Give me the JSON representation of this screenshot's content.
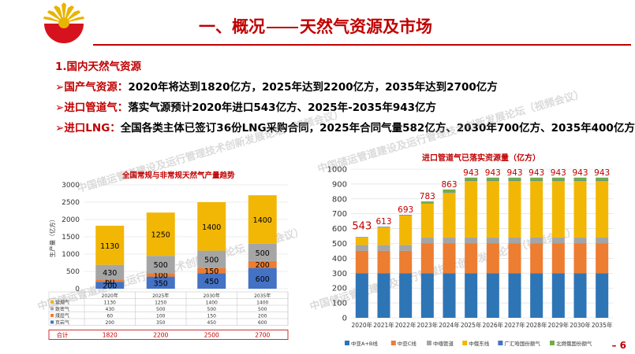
{
  "header": {
    "title_left": "一、概况",
    "title_right": "天然气资源及市场"
  },
  "section_heading": "1.国内天然气资源",
  "bullets": [
    {
      "label": "国产气资源：",
      "text": "2020年将达到1820亿方，2025年达到2200亿方，2035年达到2700亿方"
    },
    {
      "label": "进口管道气：",
      "text": "落实气源预计2020年进口543亿方、2025年-2035年943亿方"
    },
    {
      "label": "进口LNG：",
      "text": "全国各类主体已签订36份LNG采购合同，2025年合同气量582亿方、2030年700亿方、2035年400亿方"
    }
  ],
  "watermark": "中国储运管道建设及运行管理技术创新发展论坛（视频会议）",
  "page_number": "6",
  "colors": {
    "accent": "#c00000",
    "gold": "#f2b705"
  },
  "chart_data": [
    {
      "type": "bar",
      "stacked": true,
      "title": "全国常规与非常规天然气产量趋势",
      "ylabel": "生产量（亿方）",
      "ylim": [
        0,
        3000
      ],
      "yticks": [
        0,
        500,
        1000,
        1500,
        2000,
        2500,
        3000
      ],
      "categories": [
        "2020年",
        "2025年",
        "2030年",
        "2035年"
      ],
      "series": [
        {
          "name": "页岩气",
          "color": "#4472c4",
          "values": [
            200,
            350,
            450,
            600
          ]
        },
        {
          "name": "煤层气",
          "color": "#ed7d31",
          "values": [
            60,
            100,
            150,
            200
          ]
        },
        {
          "name": "致密气",
          "color": "#a5a5a5",
          "values": [
            430,
            500,
            500,
            500
          ]
        },
        {
          "name": "常规气",
          "color": "#f2b705",
          "values": [
            1130,
            1250,
            1400,
            1400
          ]
        }
      ],
      "table": {
        "legend_order": [
          "常规气",
          "致密气",
          "煤层气",
          "页岩气"
        ],
        "total_label": "合计",
        "totals": [
          1820,
          2200,
          2500,
          2700
        ]
      }
    },
    {
      "type": "bar",
      "stacked": true,
      "title": "进口管道气已落实资源量（亿方）",
      "ylim": [
        0,
        1000
      ],
      "yticks": [
        0,
        100,
        200,
        300,
        400,
        500,
        600,
        700,
        800,
        900,
        1000
      ],
      "categories": [
        "2020年",
        "2021年",
        "2022年",
        "2023年",
        "2024年",
        "2025年",
        "2026年",
        "2027年",
        "2028年",
        "2029年",
        "2030年",
        "2035年"
      ],
      "series": [
        {
          "name": "中亚A+B线",
          "color": "#2e75b6",
          "values": [
            300,
            300,
            300,
            300,
            300,
            300,
            300,
            300,
            300,
            300,
            300,
            300
          ]
        },
        {
          "name": "中亚C线",
          "color": "#ed7d31",
          "values": [
            150,
            150,
            150,
            200,
            200,
            200,
            200,
            200,
            200,
            200,
            200,
            200
          ]
        },
        {
          "name": "中缅管道",
          "color": "#a5a5a5",
          "values": [
            40,
            40,
            40,
            40,
            40,
            40,
            40,
            40,
            40,
            40,
            40,
            40
          ]
        },
        {
          "name": "中俄东线",
          "color": "#f2b705",
          "values": [
            50,
            120,
            200,
            230,
            300,
            380,
            380,
            380,
            380,
            380,
            380,
            380
          ]
        },
        {
          "name": "广汇哈国份额气",
          "color": "#4472c4",
          "values": [
            3,
            3,
            3,
            3,
            3,
            3,
            3,
            3,
            3,
            3,
            3,
            3
          ]
        },
        {
          "name": "北燃俄国份额气",
          "color": "#70ad47",
          "values": [
            0,
            0,
            0,
            10,
            20,
            20,
            20,
            20,
            20,
            20,
            20,
            20
          ]
        }
      ],
      "totals": [
        543,
        613,
        693,
        783,
        863,
        943,
        943,
        943,
        943,
        943,
        943,
        943
      ]
    }
  ]
}
